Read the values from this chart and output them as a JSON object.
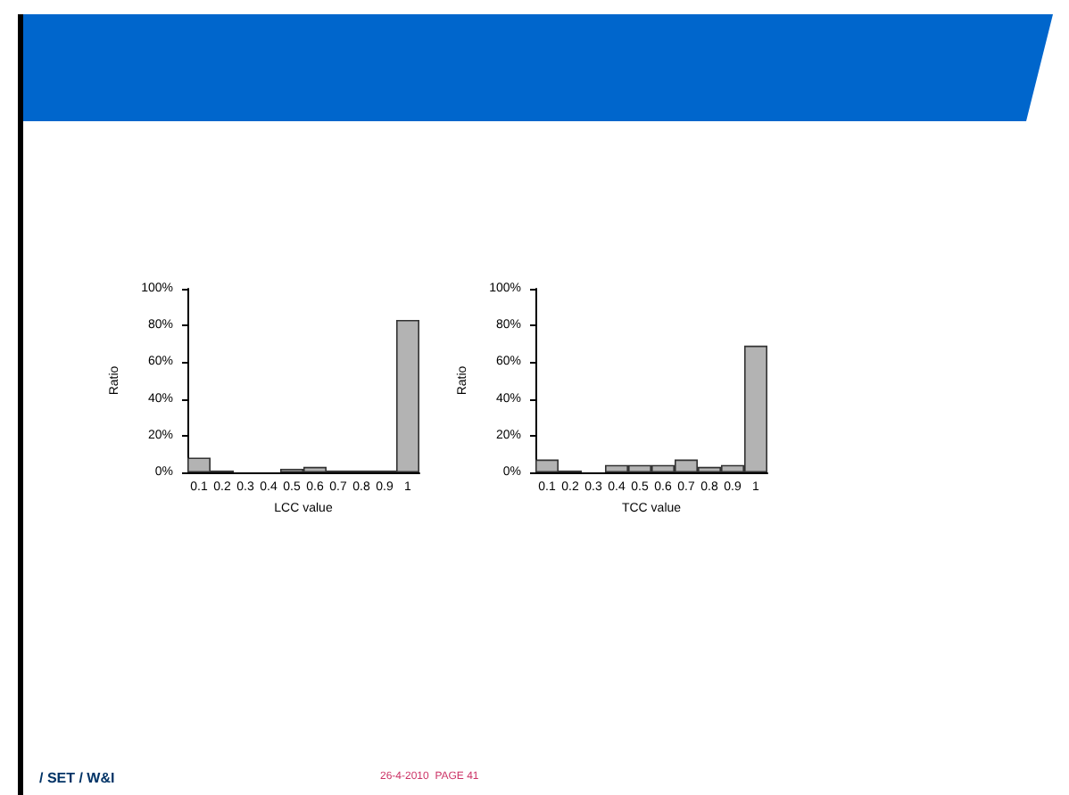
{
  "chart_data": [
    {
      "type": "bar",
      "xlabel": "LCC value",
      "ylabel": "Ratio",
      "categories": [
        "0.1",
        "0.2",
        "0.3",
        "0.4",
        "0.5",
        "0.6",
        "0.7",
        "0.8",
        "0.9",
        "1"
      ],
      "values": [
        8,
        1,
        0,
        0,
        2,
        3,
        1,
        1,
        1,
        83
      ],
      "color": "#b3b3b3",
      "ylim": [
        0,
        100
      ],
      "yticks": [
        {
          "value": 0,
          "label": "0%"
        },
        {
          "value": 20,
          "label": "20%"
        },
        {
          "value": 40,
          "label": "40%"
        },
        {
          "value": 60,
          "label": "60%"
        },
        {
          "value": 80,
          "label": "80%"
        },
        {
          "value": 100,
          "label": "100%"
        }
      ],
      "annotations": [
        "/ SET / W&I",
        "26-4-2010  PAGE 41"
      ]
    },
    {
      "type": "bar",
      "xlabel": "TCC value",
      "ylabel": "Ratio",
      "categories": [
        "0.1",
        "0.2",
        "0.3",
        "0.4",
        "0.5",
        "0.6",
        "0.7",
        "0.8",
        "0.9",
        "1"
      ],
      "values": [
        7,
        1,
        0,
        4,
        4,
        4,
        7,
        3,
        4,
        69
      ],
      "color": "#b3b3b3",
      "ylim": [
        0,
        100
      ],
      "yticks": [
        {
          "value": 0,
          "label": "0%"
        },
        {
          "value": 20,
          "label": "20%"
        },
        {
          "value": 40,
          "label": "40%"
        },
        {
          "value": 60,
          "label": "60%"
        },
        {
          "value": 80,
          "label": "80%"
        },
        {
          "value": 100,
          "label": "100%"
        }
      ]
    }
  ]
}
